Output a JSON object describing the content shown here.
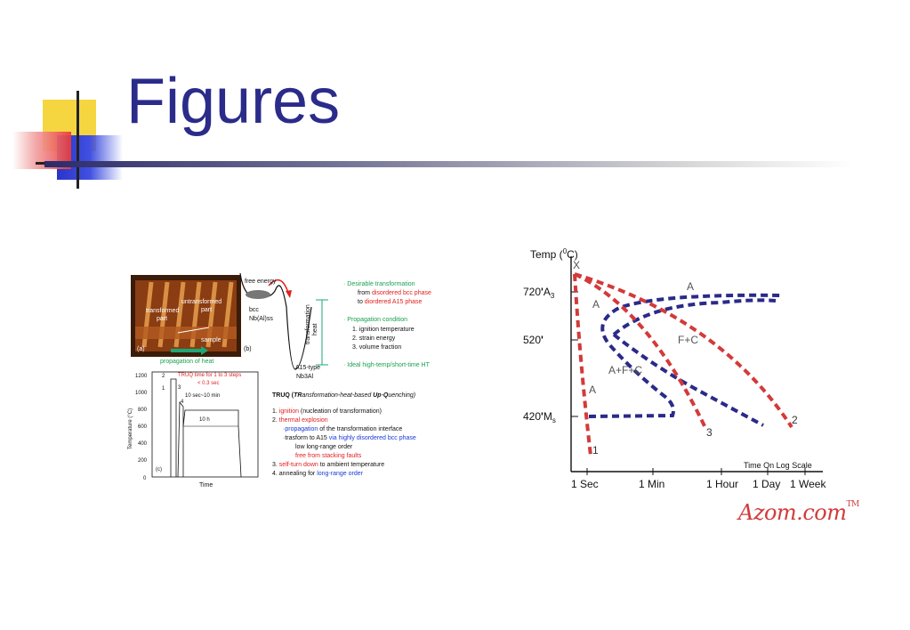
{
  "slide": {
    "title": "Figures"
  },
  "left_figure": {
    "photo": {
      "transformed": [
        "transformed",
        "part"
      ],
      "untransformed": [
        "untransformed",
        "part"
      ],
      "sample": "sample",
      "label_a": "(a)",
      "propagation": "propagation of heat"
    },
    "energy": {
      "free_energy": "free energy",
      "bcc": "bcc",
      "nb_al_ss": "Nb(Al)ss",
      "heat": [
        "transformation",
        "heat"
      ],
      "a15_type": "A15-type",
      "nb3al": "Nb3Al",
      "label_b": "(b)"
    },
    "notes": {
      "desirable": "Desirable transformation",
      "from_pre": "from ",
      "from_red": "disordered bcc phase",
      "to_pre": "to ",
      "to_red": "diordered A15 phase",
      "propagation_title": "Propagation condition",
      "items": [
        "1.  ignition temperature",
        "2.  strain energy",
        "3.  volume fraction"
      ],
      "ideal": "Ideal high-temp/short-time HT"
    },
    "temp_chart": {
      "ylabel": "Temperature (°C)",
      "xlabel": "Time",
      "yticks": [
        "1200",
        "1000",
        "800",
        "600",
        "400",
        "200",
        "0"
      ],
      "truq_time": "TRUQ time for 1 to 3 steps",
      "lt": "< 0.3 sec",
      "steps": [
        "2",
        "1",
        "3",
        "4"
      ],
      "ten_sec": "10 sec~10 min",
      "ten_h": "10 h",
      "label_c": "(c)"
    },
    "truq": {
      "heading_pre": "TRUQ (",
      "heading_tr": "TR",
      "heading_mid1": "ansformation-heat-based ",
      "heading_up": "Up",
      "heading_mid2": "-",
      "heading_q": "Q",
      "heading_end": "uenching)",
      "l1_num": "1. ",
      "l1_red": "ignition",
      "l1_rest": " (nucleation of transformation)",
      "l2_num": "2. ",
      "l2_red": "thermal explosion",
      "l3_pre": "·",
      "l3_blue": "propagation",
      "l3_rest": " of the transformation interface",
      "l4_pre": "·trasform to A15 ",
      "l4_blue": "via highly disordered bcc phase",
      "l5": "low long-range order",
      "l6_red": "free from stacking faults",
      "l7_num": "3. ",
      "l7_red": "self-turn down",
      "l7_rest": " to ambient temperature",
      "l8_pre": "4. annealing for ",
      "l8_blue": "long-range order"
    }
  },
  "right_figure": {
    "chart_data": {
      "type": "line",
      "title": "",
      "ylabel": "Temp (°C)",
      "xlabel": "Time On Log Scale",
      "x_ticks": [
        "1 Sec",
        "1 Min",
        "1 Hour",
        "1 Day",
        "1 Week"
      ],
      "y_ticks": [
        "720 A3",
        "520",
        "420 Ms"
      ],
      "region_labels": [
        "X",
        "A",
        "A",
        "F+C",
        "A+F+C",
        "A"
      ],
      "series": [
        {
          "name": "1",
          "color": "#d33a3a"
        },
        {
          "name": "2",
          "color": "#d33a3a"
        },
        {
          "name": "3",
          "color": "#d33a3a"
        }
      ],
      "boundary_color": "#2a2a8a"
    },
    "ylabel_text": "Temp (",
    "ylabel_sup": "0",
    "ylabel_end": "C)",
    "tick_720": "720",
    "tick_720_a": "A",
    "tick_720_sub": "3",
    "tick_520": "520",
    "tick_420": "420",
    "tick_420_m": "M",
    "tick_420_sub": "s",
    "x_label": "X",
    "a_top": "A",
    "a_left": "A",
    "fc": "F+C",
    "afc": "A+F+C",
    "a_low": "A",
    "curve1": "1",
    "curve2": "2",
    "curve3": "3",
    "axis_title": "Time On Log Scale",
    "xt1": "1 Sec",
    "xt2": "1 Min",
    "xt3": "1 Hour",
    "xt4": "1 Day",
    "xt5": "1 Week"
  },
  "logo": {
    "text": "Azom.com",
    "tm": "TM"
  }
}
